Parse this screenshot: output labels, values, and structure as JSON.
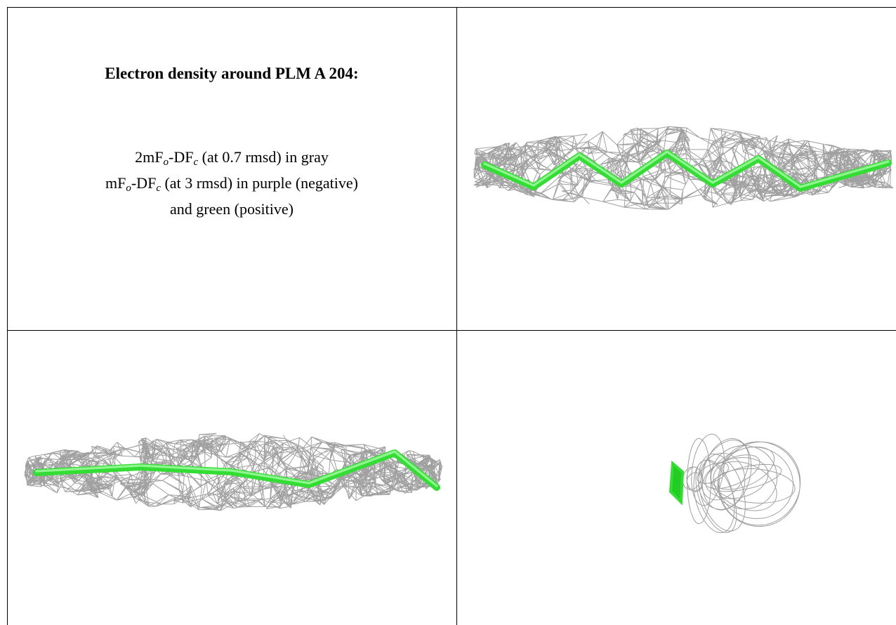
{
  "caption": {
    "title": "Electron density around PLM A 204:",
    "lines": [
      [
        "2mF",
        "o",
        "-DF",
        "c",
        " (at 0.7 rmsd) in gray"
      ],
      [
        "mF",
        "o",
        "-DF",
        "c",
        " (at 3 rmsd) in purple (negative)"
      ],
      [
        "and green (positive)"
      ]
    ]
  }
}
